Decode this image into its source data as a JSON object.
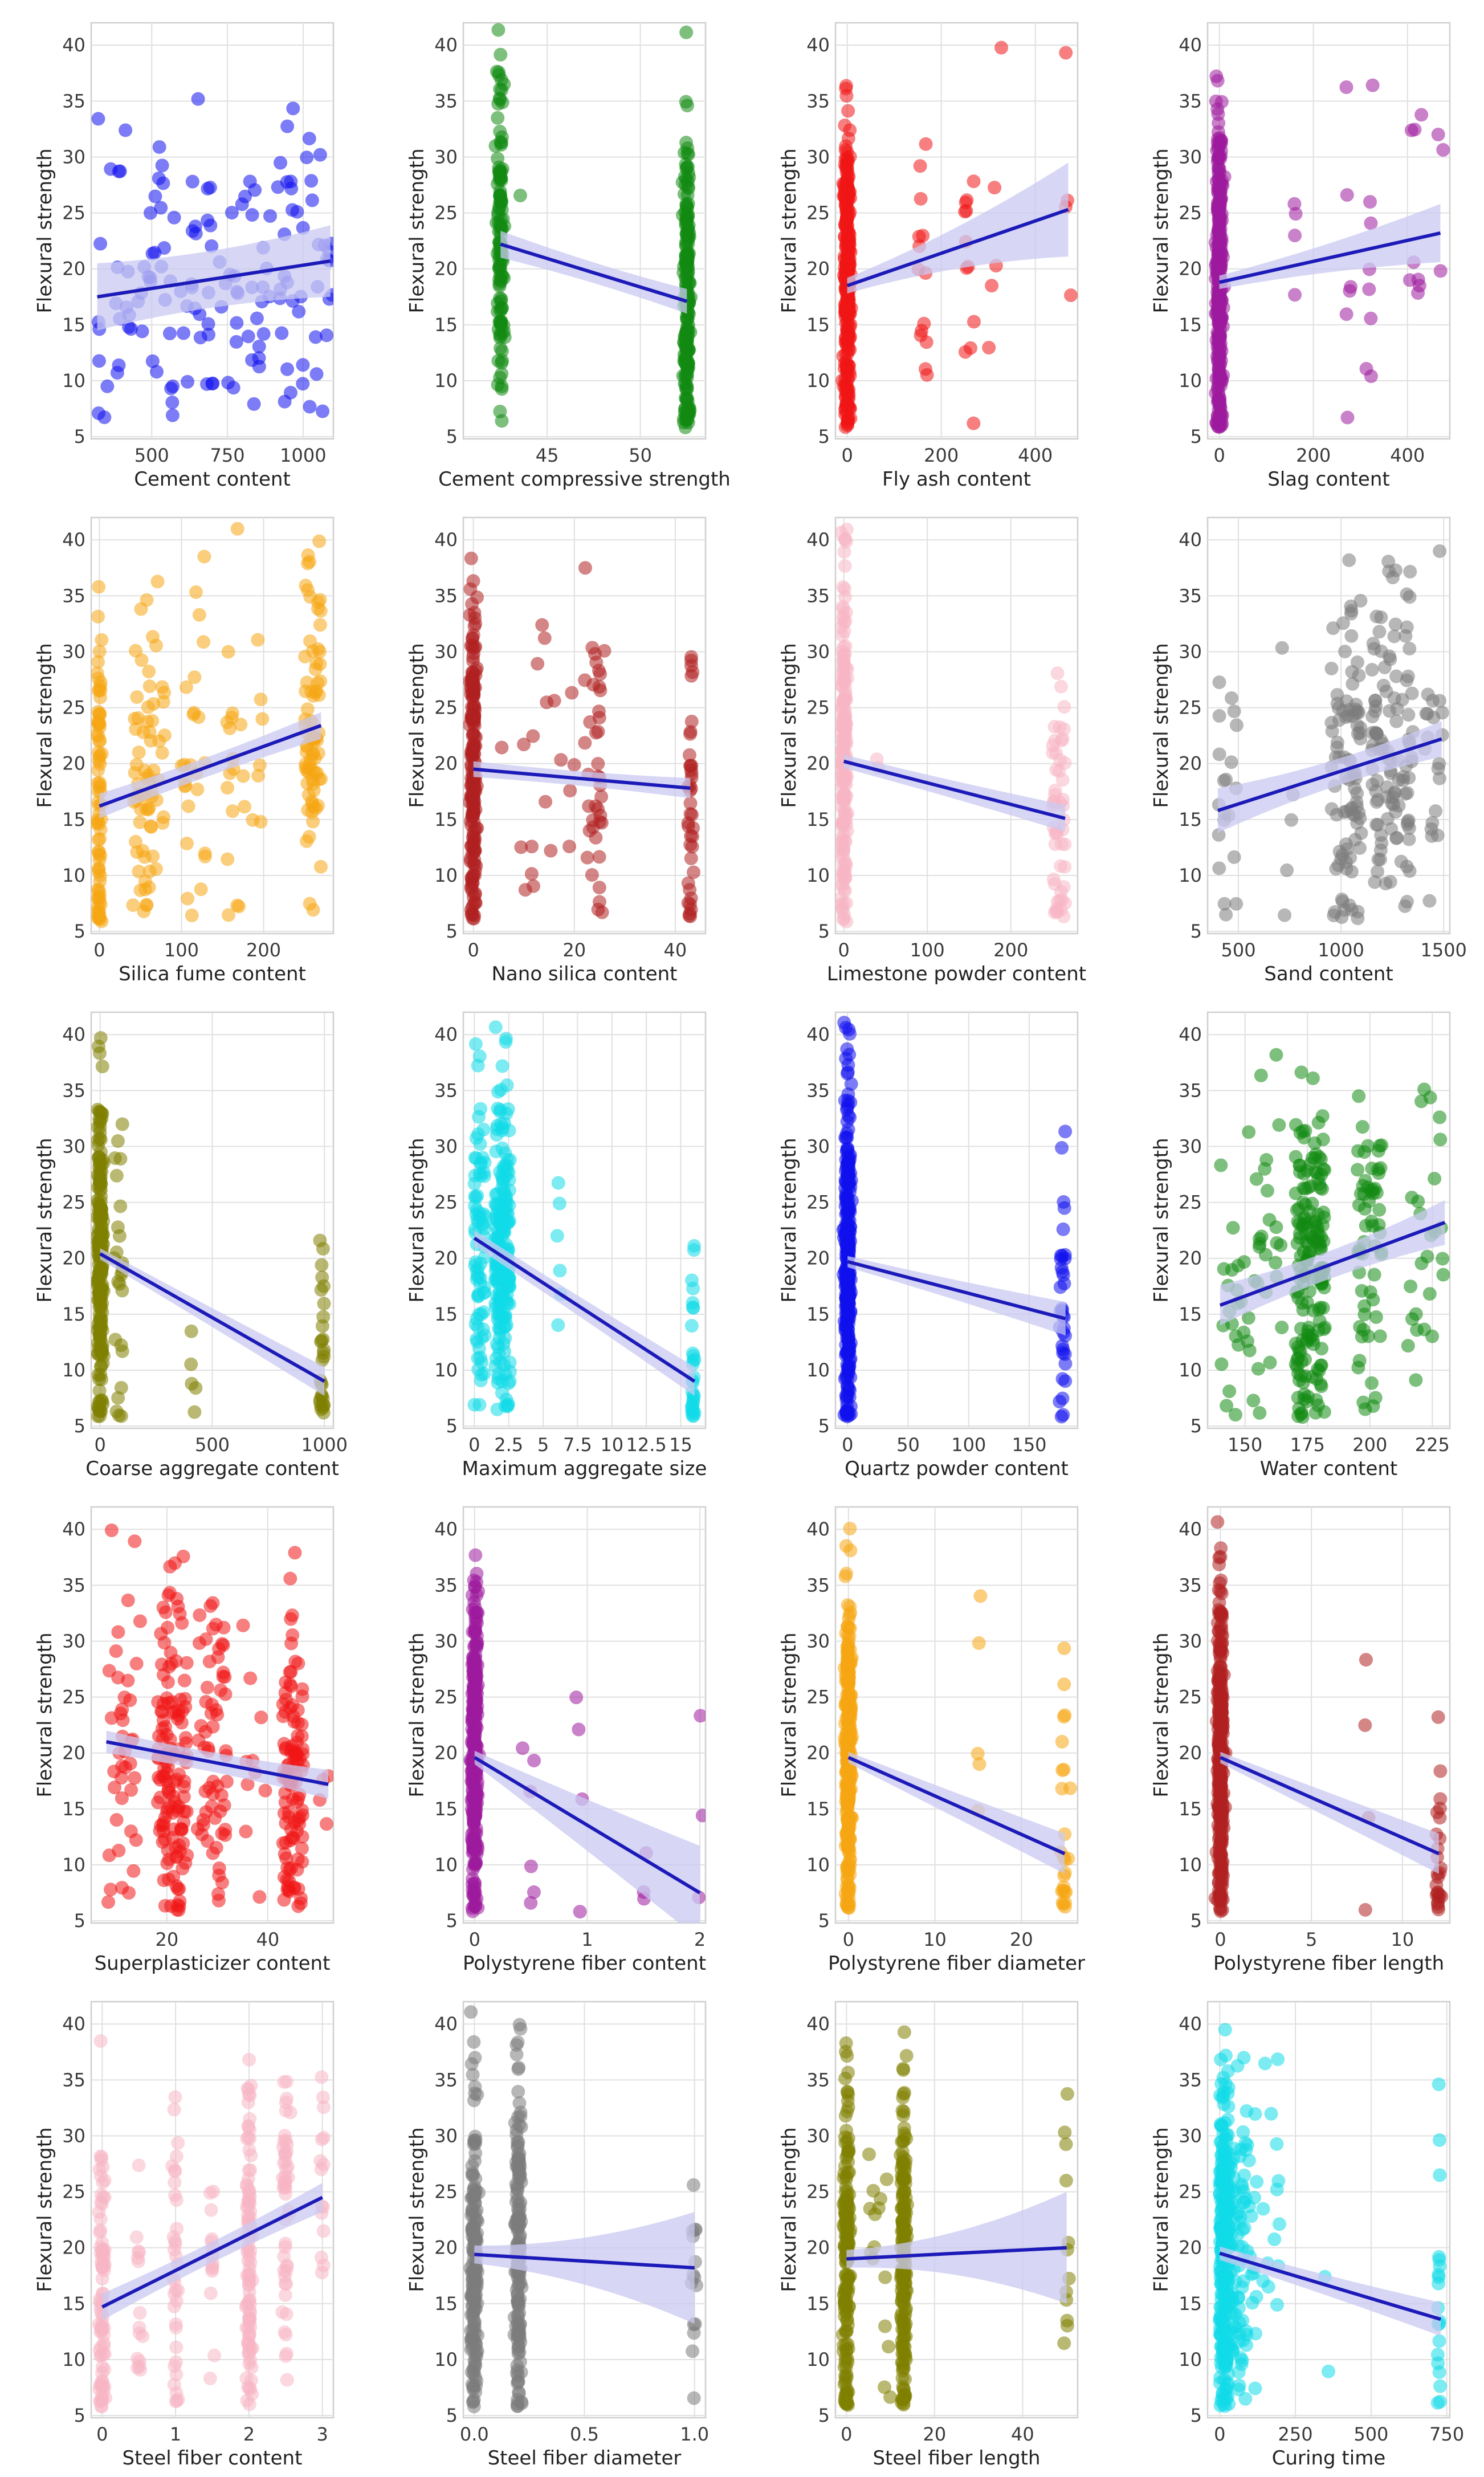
{
  "figure": {
    "ylabel": "Flexural strength",
    "y_ticks": [
      5,
      10,
      15,
      20,
      25,
      30,
      35,
      40
    ],
    "ci_color": "#c9caf2",
    "line_color": "#1c1ab8"
  },
  "chart_data": [
    {
      "type": "scatter",
      "xlabel": "Cement content",
      "color": "#1010ee",
      "xlim": [
        300,
        1100
      ],
      "ylim": [
        4.8,
        42
      ],
      "xticks": [
        500,
        750,
        1000
      ],
      "xticklabels": [
        "500",
        "750",
        "1000"
      ],
      "clusters": [
        [
          320,
          1100,
          150
        ]
      ],
      "fit": {
        "x": [
          320,
          1090
        ],
        "y": [
          17.5,
          20.7
        ],
        "ci": [
          3.0,
          2.0,
          3.2
        ]
      }
    },
    {
      "type": "scatter",
      "xlabel": "Cement compressive strength",
      "color": "#138a13",
      "xlim": [
        40.5,
        53.5
      ],
      "ylim": [
        4.8,
        42
      ],
      "xticks": [
        45,
        50
      ],
      "xticklabels": [
        "45",
        "50"
      ],
      "clusters": [
        [
          42.5,
          42.5,
          130
        ],
        [
          52.5,
          52.5,
          200
        ],
        [
          43.5,
          43.5,
          1
        ]
      ],
      "fit": {
        "x": [
          42.5,
          52.5
        ],
        "y": [
          22.2,
          17.1
        ],
        "ci": [
          1.2,
          0.7,
          1.1
        ]
      }
    },
    {
      "type": "scatter",
      "xlabel": "Fly ash content",
      "color": "#f01515",
      "xlim": [
        -25,
        490
      ],
      "ylim": [
        4.8,
        42
      ],
      "xticks": [
        0,
        200,
        400
      ],
      "xticklabels": [
        "0",
        "200",
        "400"
      ],
      "clusters": [
        [
          0,
          0,
          300
        ],
        [
          150,
          170,
          14
        ],
        [
          250,
          270,
          12
        ],
        [
          300,
          330,
          5
        ],
        [
          470,
          470,
          4
        ]
      ],
      "fit": {
        "x": [
          0,
          470
        ],
        "y": [
          18.5,
          25.3
        ],
        "ci": [
          0.7,
          1.3,
          4.2
        ]
      }
    },
    {
      "type": "scatter",
      "xlabel": "Slag content",
      "color": "#9c1a9c",
      "xlim": [
        -25,
        490
      ],
      "ylim": [
        4.8,
        42
      ],
      "xticks": [
        0,
        200,
        400
      ],
      "xticklabels": [
        "0",
        "200",
        "400"
      ],
      "clusters": [
        [
          0,
          0,
          300
        ],
        [
          160,
          160,
          4
        ],
        [
          270,
          280,
          6
        ],
        [
          320,
          320,
          8
        ],
        [
          400,
          430,
          8
        ],
        [
          470,
          470,
          3
        ]
      ],
      "fit": {
        "x": [
          0,
          470
        ],
        "y": [
          18.8,
          23.2
        ],
        "ci": [
          0.6,
          1.0,
          2.6
        ]
      }
    },
    {
      "type": "scatter",
      "xlabel": "Silica fume content",
      "color": "#f5a612",
      "xlim": [
        -10,
        285
      ],
      "ylim": [
        4.8,
        42
      ],
      "xticks": [
        0,
        100,
        200
      ],
      "xticklabels": [
        "0",
        "100",
        "200"
      ],
      "clusters": [
        [
          0,
          0,
          80
        ],
        [
          40,
          60,
          40
        ],
        [
          60,
          80,
          30
        ],
        [
          100,
          130,
          25
        ],
        [
          150,
          200,
          25
        ],
        [
          250,
          270,
          80
        ]
      ],
      "fit": {
        "x": [
          0,
          270
        ],
        "y": [
          16.2,
          23.4
        ],
        "ci": [
          1.1,
          0.6,
          1.2
        ]
      }
    },
    {
      "type": "scatter",
      "xlabel": "Nano silica content",
      "color": "#b02020",
      "xlim": [
        -2,
        46
      ],
      "ylim": [
        4.8,
        42
      ],
      "xticks": [
        0,
        20,
        40
      ],
      "xticklabels": [
        "0",
        "20",
        "40"
      ],
      "clusters": [
        [
          0,
          0,
          200
        ],
        [
          5,
          20,
          20
        ],
        [
          22,
          26,
          40
        ],
        [
          43,
          43,
          40
        ]
      ],
      "fit": {
        "x": [
          0,
          43
        ],
        "y": [
          19.5,
          17.8
        ],
        "ci": [
          0.7,
          0.5,
          0.9
        ]
      }
    },
    {
      "type": "scatter",
      "xlabel": "Limestone powder content",
      "color": "#f7b7c4",
      "xlim": [
        -10,
        280
      ],
      "ylim": [
        4.8,
        42
      ],
      "xticks": [
        0,
        100,
        200
      ],
      "xticklabels": [
        "0",
        "100",
        "200"
      ],
      "clusters": [
        [
          0,
          0,
          200
        ],
        [
          40,
          40,
          2
        ],
        [
          250,
          265,
          50
        ]
      ],
      "fit": {
        "x": [
          0,
          265
        ],
        "y": [
          20.2,
          15.1
        ],
        "ci": [
          0.6,
          0.7,
          1.2
        ]
      }
    },
    {
      "type": "scatter",
      "xlabel": "Sand content",
      "color": "#7c7c7c",
      "xlim": [
        350,
        1530
      ],
      "ylim": [
        4.8,
        42
      ],
      "xticks": [
        500,
        1000,
        1500
      ],
      "xticklabels": [
        "500",
        "1000",
        "1500"
      ],
      "clusters": [
        [
          400,
          500,
          20
        ],
        [
          700,
          800,
          5
        ],
        [
          950,
          1100,
          90
        ],
        [
          1150,
          1350,
          110
        ],
        [
          1400,
          1500,
          20
        ]
      ],
      "fit": {
        "x": [
          400,
          1490
        ],
        "y": [
          15.8,
          22.2
        ],
        "ci": [
          2.0,
          0.6,
          1.6
        ]
      }
    },
    {
      "type": "scatter",
      "xlabel": "Coarse aggregate content",
      "color": "#7f7f00",
      "xlim": [
        -40,
        1040
      ],
      "ylim": [
        4.8,
        42
      ],
      "xticks": [
        0,
        500,
        1000
      ],
      "xticklabels": [
        "0",
        "500",
        "1000"
      ],
      "clusters": [
        [
          0,
          0,
          220
        ],
        [
          60,
          100,
          25
        ],
        [
          400,
          430,
          5
        ],
        [
          980,
          1000,
          30
        ]
      ],
      "fit": {
        "x": [
          0,
          1000
        ],
        "y": [
          20.4,
          9.0
        ],
        "ci": [
          0.5,
          0.8,
          1.3
        ]
      }
    },
    {
      "type": "scatter",
      "xlabel": "Maximum aggregate size",
      "color": "#11dbe8",
      "xlim": [
        -0.8,
        16.8
      ],
      "ylim": [
        4.8,
        42
      ],
      "xticks": [
        0,
        2.5,
        5,
        7.5,
        10,
        12.5,
        15
      ],
      "xticklabels": [
        "0",
        "2.5",
        "5",
        "7.5",
        "10",
        "12.5",
        "15"
      ],
      "clusters": [
        [
          0,
          0.8,
          80
        ],
        [
          1.5,
          2.6,
          200
        ],
        [
          6.0,
          6.4,
          6
        ],
        [
          15.8,
          16,
          30
        ]
      ],
      "fit": {
        "x": [
          0,
          16
        ],
        "y": [
          21.8,
          9.0
        ],
        "ci": [
          0.7,
          0.8,
          1.3
        ]
      }
    },
    {
      "type": "scatter",
      "xlabel": "Quartz powder content",
      "color": "#1010ee",
      "xlim": [
        -10,
        190
      ],
      "ylim": [
        4.8,
        42
      ],
      "xticks": [
        0,
        50,
        100,
        150
      ],
      "xticklabels": [
        "0",
        "50",
        "100",
        "150"
      ],
      "clusters": [
        [
          0,
          0,
          300
        ],
        [
          175,
          180,
          35
        ]
      ],
      "fit": {
        "x": [
          0,
          180
        ],
        "y": [
          19.7,
          14.6
        ],
        "ci": [
          0.5,
          0.8,
          1.5
        ]
      }
    },
    {
      "type": "scatter",
      "xlabel": "Water content",
      "color": "#138a13",
      "xlim": [
        135,
        232
      ],
      "ylim": [
        4.8,
        42
      ],
      "xticks": [
        150,
        175,
        200,
        225
      ],
      "xticklabels": [
        "150",
        "175",
        "200",
        "225"
      ],
      "clusters": [
        [
          140,
          165,
          50
        ],
        [
          170,
          182,
          170
        ],
        [
          195,
          205,
          60
        ],
        [
          215,
          230,
          25
        ]
      ],
      "fit": {
        "x": [
          140,
          230
        ],
        "y": [
          15.8,
          23.2
        ],
        "ci": [
          1.8,
          0.6,
          2.0
        ]
      }
    },
    {
      "type": "scatter",
      "xlabel": "Superplasticizer content",
      "color": "#f01515",
      "xlim": [
        5,
        53
      ],
      "ylim": [
        4.8,
        42
      ],
      "xticks": [
        20,
        40
      ],
      "xticklabels": [
        "20",
        "40"
      ],
      "clusters": [
        [
          8,
          15,
          40
        ],
        [
          18,
          24,
          130
        ],
        [
          26,
          32,
          60
        ],
        [
          35,
          40,
          10
        ],
        [
          43,
          47,
          110
        ],
        [
          50,
          52,
          4
        ]
      ],
      "fit": {
        "x": [
          8,
          52
        ],
        "y": [
          21.0,
          17.2
        ],
        "ci": [
          1.0,
          0.6,
          1.3
        ]
      }
    },
    {
      "type": "scatter",
      "xlabel": "Polystyrene fiber content",
      "color": "#9c1a9c",
      "xlim": [
        -0.1,
        2.05
      ],
      "ylim": [
        4.8,
        42
      ],
      "xticks": [
        0,
        1,
        2
      ],
      "xticklabels": [
        "0",
        "1",
        "2"
      ],
      "clusters": [
        [
          0,
          0,
          300
        ],
        [
          0.4,
          0.55,
          6
        ],
        [
          0.9,
          1.0,
          4
        ],
        [
          1.5,
          1.5,
          3
        ],
        [
          2.0,
          2.0,
          3
        ]
      ],
      "fit": {
        "x": [
          0,
          2
        ],
        "y": [
          19.6,
          7.5
        ],
        "ci": [
          0.6,
          2.2,
          4.2
        ]
      }
    },
    {
      "type": "scatter",
      "xlabel": "Polystyrene fiber diameter",
      "color": "#f5a612",
      "xlim": [
        -1.5,
        26.5
      ],
      "ylim": [
        4.8,
        42
      ],
      "xticks": [
        0,
        10,
        20
      ],
      "xticklabels": [
        "0",
        "10",
        "20"
      ],
      "clusters": [
        [
          0,
          0,
          300
        ],
        [
          15,
          15,
          5
        ],
        [
          25,
          25,
          25
        ]
      ],
      "fit": {
        "x": [
          0,
          25
        ],
        "y": [
          19.6,
          11.0
        ],
        "ci": [
          0.5,
          1.1,
          1.8
        ]
      }
    },
    {
      "type": "scatter",
      "xlabel": "Polystyrene fiber length",
      "color": "#b02020",
      "xlim": [
        -0.7,
        12.6
      ],
      "ylim": [
        4.8,
        42
      ],
      "xticks": [
        0,
        5,
        10
      ],
      "xticklabels": [
        "0",
        "5",
        "10"
      ],
      "clusters": [
        [
          0,
          0,
          300
        ],
        [
          8,
          8,
          4
        ],
        [
          12,
          12,
          25
        ]
      ],
      "fit": {
        "x": [
          0,
          12
        ],
        "y": [
          19.6,
          11.0
        ],
        "ci": [
          0.5,
          1.1,
          1.8
        ]
      }
    },
    {
      "type": "scatter",
      "xlabel": "Steel fiber content",
      "color": "#f7b7c4",
      "xlim": [
        -0.15,
        3.15
      ],
      "ylim": [
        4.8,
        42
      ],
      "xticks": [
        0,
        1,
        2,
        3
      ],
      "xticklabels": [
        "0",
        "1",
        "2",
        "3"
      ],
      "clusters": [
        [
          0,
          0,
          90
        ],
        [
          0.5,
          0.5,
          15
        ],
        [
          1.0,
          1.0,
          35
        ],
        [
          1.5,
          1.5,
          15
        ],
        [
          2.0,
          2.0,
          100
        ],
        [
          2.5,
          2.5,
          50
        ],
        [
          3.0,
          3.0,
          15
        ]
      ],
      "fit": {
        "x": [
          0,
          3
        ],
        "y": [
          14.7,
          24.5
        ],
        "ci": [
          1.2,
          0.6,
          1.3
        ]
      }
    },
    {
      "type": "scatter",
      "xlabel": "Steel fiber diameter",
      "color": "#7c7c7c",
      "xlim": [
        -0.05,
        1.05
      ],
      "ylim": [
        4.8,
        42
      ],
      "xticks": [
        0,
        0.5,
        1.0
      ],
      "xticklabels": [
        "0.0",
        "0.5",
        "1.0"
      ],
      "clusters": [
        [
          0,
          0,
          180
        ],
        [
          0.2,
          0.2,
          170
        ],
        [
          1.0,
          1.0,
          15
        ]
      ],
      "fit": {
        "x": [
          0,
          1.0
        ],
        "y": [
          19.4,
          18.2
        ],
        "ci": [
          0.8,
          1.3,
          5.0
        ]
      }
    },
    {
      "type": "scatter",
      "xlabel": "Steel fiber length",
      "color": "#7f7f00",
      "xlim": [
        -2.5,
        52.5
      ],
      "ylim": [
        4.8,
        42
      ],
      "xticks": [
        0,
        20,
        40
      ],
      "xticklabels": [
        "0",
        "20",
        "40"
      ],
      "clusters": [
        [
          0,
          0,
          180
        ],
        [
          5,
          10,
          15
        ],
        [
          13,
          13,
          180
        ],
        [
          50,
          50,
          12
        ]
      ],
      "fit": {
        "x": [
          0,
          50
        ],
        "y": [
          19.0,
          20.0
        ],
        "ci": [
          0.8,
          1.0,
          5.0
        ]
      }
    },
    {
      "type": "scatter",
      "xlabel": "Curing time",
      "color": "#11dbe8",
      "xlim": [
        -40,
        760
      ],
      "ylim": [
        4.8,
        42
      ],
      "xticks": [
        0,
        250,
        500,
        750
      ],
      "xticklabels": [
        "0",
        "250",
        "500",
        "750"
      ],
      "clusters": [
        [
          0,
          30,
          250
        ],
        [
          30,
          90,
          80
        ],
        [
          90,
          200,
          30
        ],
        [
          340,
          360,
          2
        ],
        [
          720,
          730,
          20
        ]
      ],
      "fit": {
        "x": [
          0,
          730
        ],
        "y": [
          19.5,
          13.6
        ],
        "ci": [
          0.6,
          0.8,
          1.5
        ]
      }
    }
  ]
}
